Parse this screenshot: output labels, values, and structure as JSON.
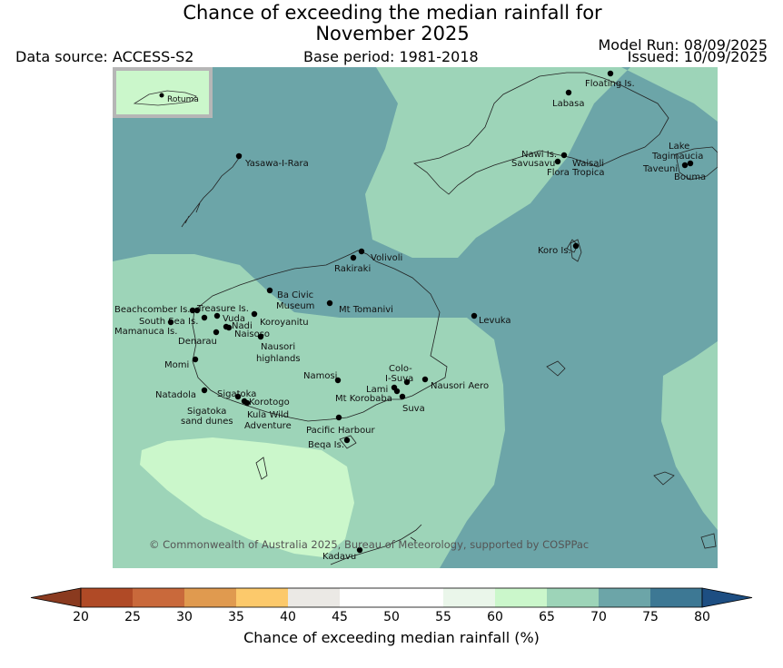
{
  "title": {
    "line1": "Chance of exceeding the median rainfall for",
    "line2": "November 2025"
  },
  "header": {
    "data_source": "Data source: ACCESS-S2",
    "base_period": "Base period: 1981-2018",
    "model_run": "Model Run: 08/09/2025",
    "issued": "Issued: 10/09/2025"
  },
  "inset": {
    "label": "Rotuma"
  },
  "places": [
    {
      "name": "Floating Is."
    },
    {
      "name": "Labasa"
    },
    {
      "name": "Yasawa-I-Rara"
    },
    {
      "name": "Nawi Is."
    },
    {
      "name": "Savusavu"
    },
    {
      "name": "Waisali"
    },
    {
      "name": "Flora Tropica"
    },
    {
      "name": "Lake"
    },
    {
      "name": "Tagimaucia"
    },
    {
      "name": "Taveuni"
    },
    {
      "name": "Bouma"
    },
    {
      "name": "Koro Is."
    },
    {
      "name": "Volivoli"
    },
    {
      "name": "Rakiraki"
    },
    {
      "name": "Ba Civic"
    },
    {
      "name": "Museum"
    },
    {
      "name": "Mt Tomanivi"
    },
    {
      "name": "Levuka"
    },
    {
      "name": "Beachcomber Is."
    },
    {
      "name": "Treasure Is."
    },
    {
      "name": "South Sea Is."
    },
    {
      "name": "Vuda"
    },
    {
      "name": "Koroyanitu"
    },
    {
      "name": "Nadi"
    },
    {
      "name": "Mamanuca Is."
    },
    {
      "name": "Naisoso"
    },
    {
      "name": "Denarau"
    },
    {
      "name": "Nausori"
    },
    {
      "name": "highlands"
    },
    {
      "name": "Momi"
    },
    {
      "name": "Namosi"
    },
    {
      "name": "Colo-"
    },
    {
      "name": "I-Suva"
    },
    {
      "name": "Lami"
    },
    {
      "name": "Nausori Aero"
    },
    {
      "name": "Natadola"
    },
    {
      "name": "Sigatoka"
    },
    {
      "name": "Mt Korobaba"
    },
    {
      "name": "Korotogo"
    },
    {
      "name": "Suva"
    },
    {
      "name": "Sigatoka"
    },
    {
      "name": "sand dunes"
    },
    {
      "name": "Kula Wild"
    },
    {
      "name": "Adventure"
    },
    {
      "name": "Pacific Harbour"
    },
    {
      "name": "Beqa Is."
    },
    {
      "name": "Kadavu"
    }
  ],
  "copyright": "© Commonwealth of Australia 2025, Bureau of Meteorology, supported by COSPPac",
  "colorbar": {
    "title": "Chance of exceeding median rainfall (%)",
    "ticks": [
      "20",
      "25",
      "30",
      "35",
      "40",
      "45",
      "50",
      "55",
      "60",
      "65",
      "70",
      "75",
      "80"
    ],
    "under_color": "#8a3a1f",
    "over_color": "#1d4e82",
    "colors": [
      "#b04a26",
      "#c9693b",
      "#e09a4f",
      "#fcc96b",
      "#ebe9e5",
      "#ffffff",
      "#ffffff",
      "#eaf6ea",
      "#cbf7cb",
      "#9dd4b8",
      "#6ca5a8",
      "#3d7894"
    ]
  }
}
